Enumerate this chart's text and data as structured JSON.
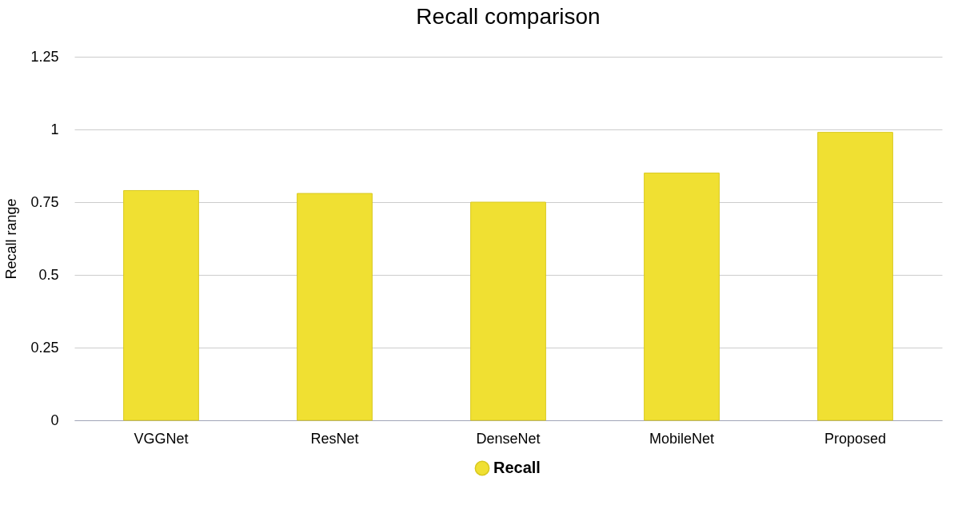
{
  "chart_data": {
    "type": "bar",
    "title": "Recall comparison",
    "ylabel": "Recall range",
    "categories": [
      "VGGNet",
      "ResNet",
      "DenseNet",
      "MobileNet",
      "Proposed"
    ],
    "series": [
      {
        "name": "Recall",
        "color": "#f0e032",
        "values": [
          0.79,
          0.78,
          0.75,
          0.85,
          0.99
        ]
      }
    ],
    "ylim": [
      0,
      1.25
    ],
    "yticks": [
      0,
      0.25,
      0.5,
      0.75,
      1,
      1.25
    ],
    "grid": "y",
    "legend": "bottom"
  }
}
